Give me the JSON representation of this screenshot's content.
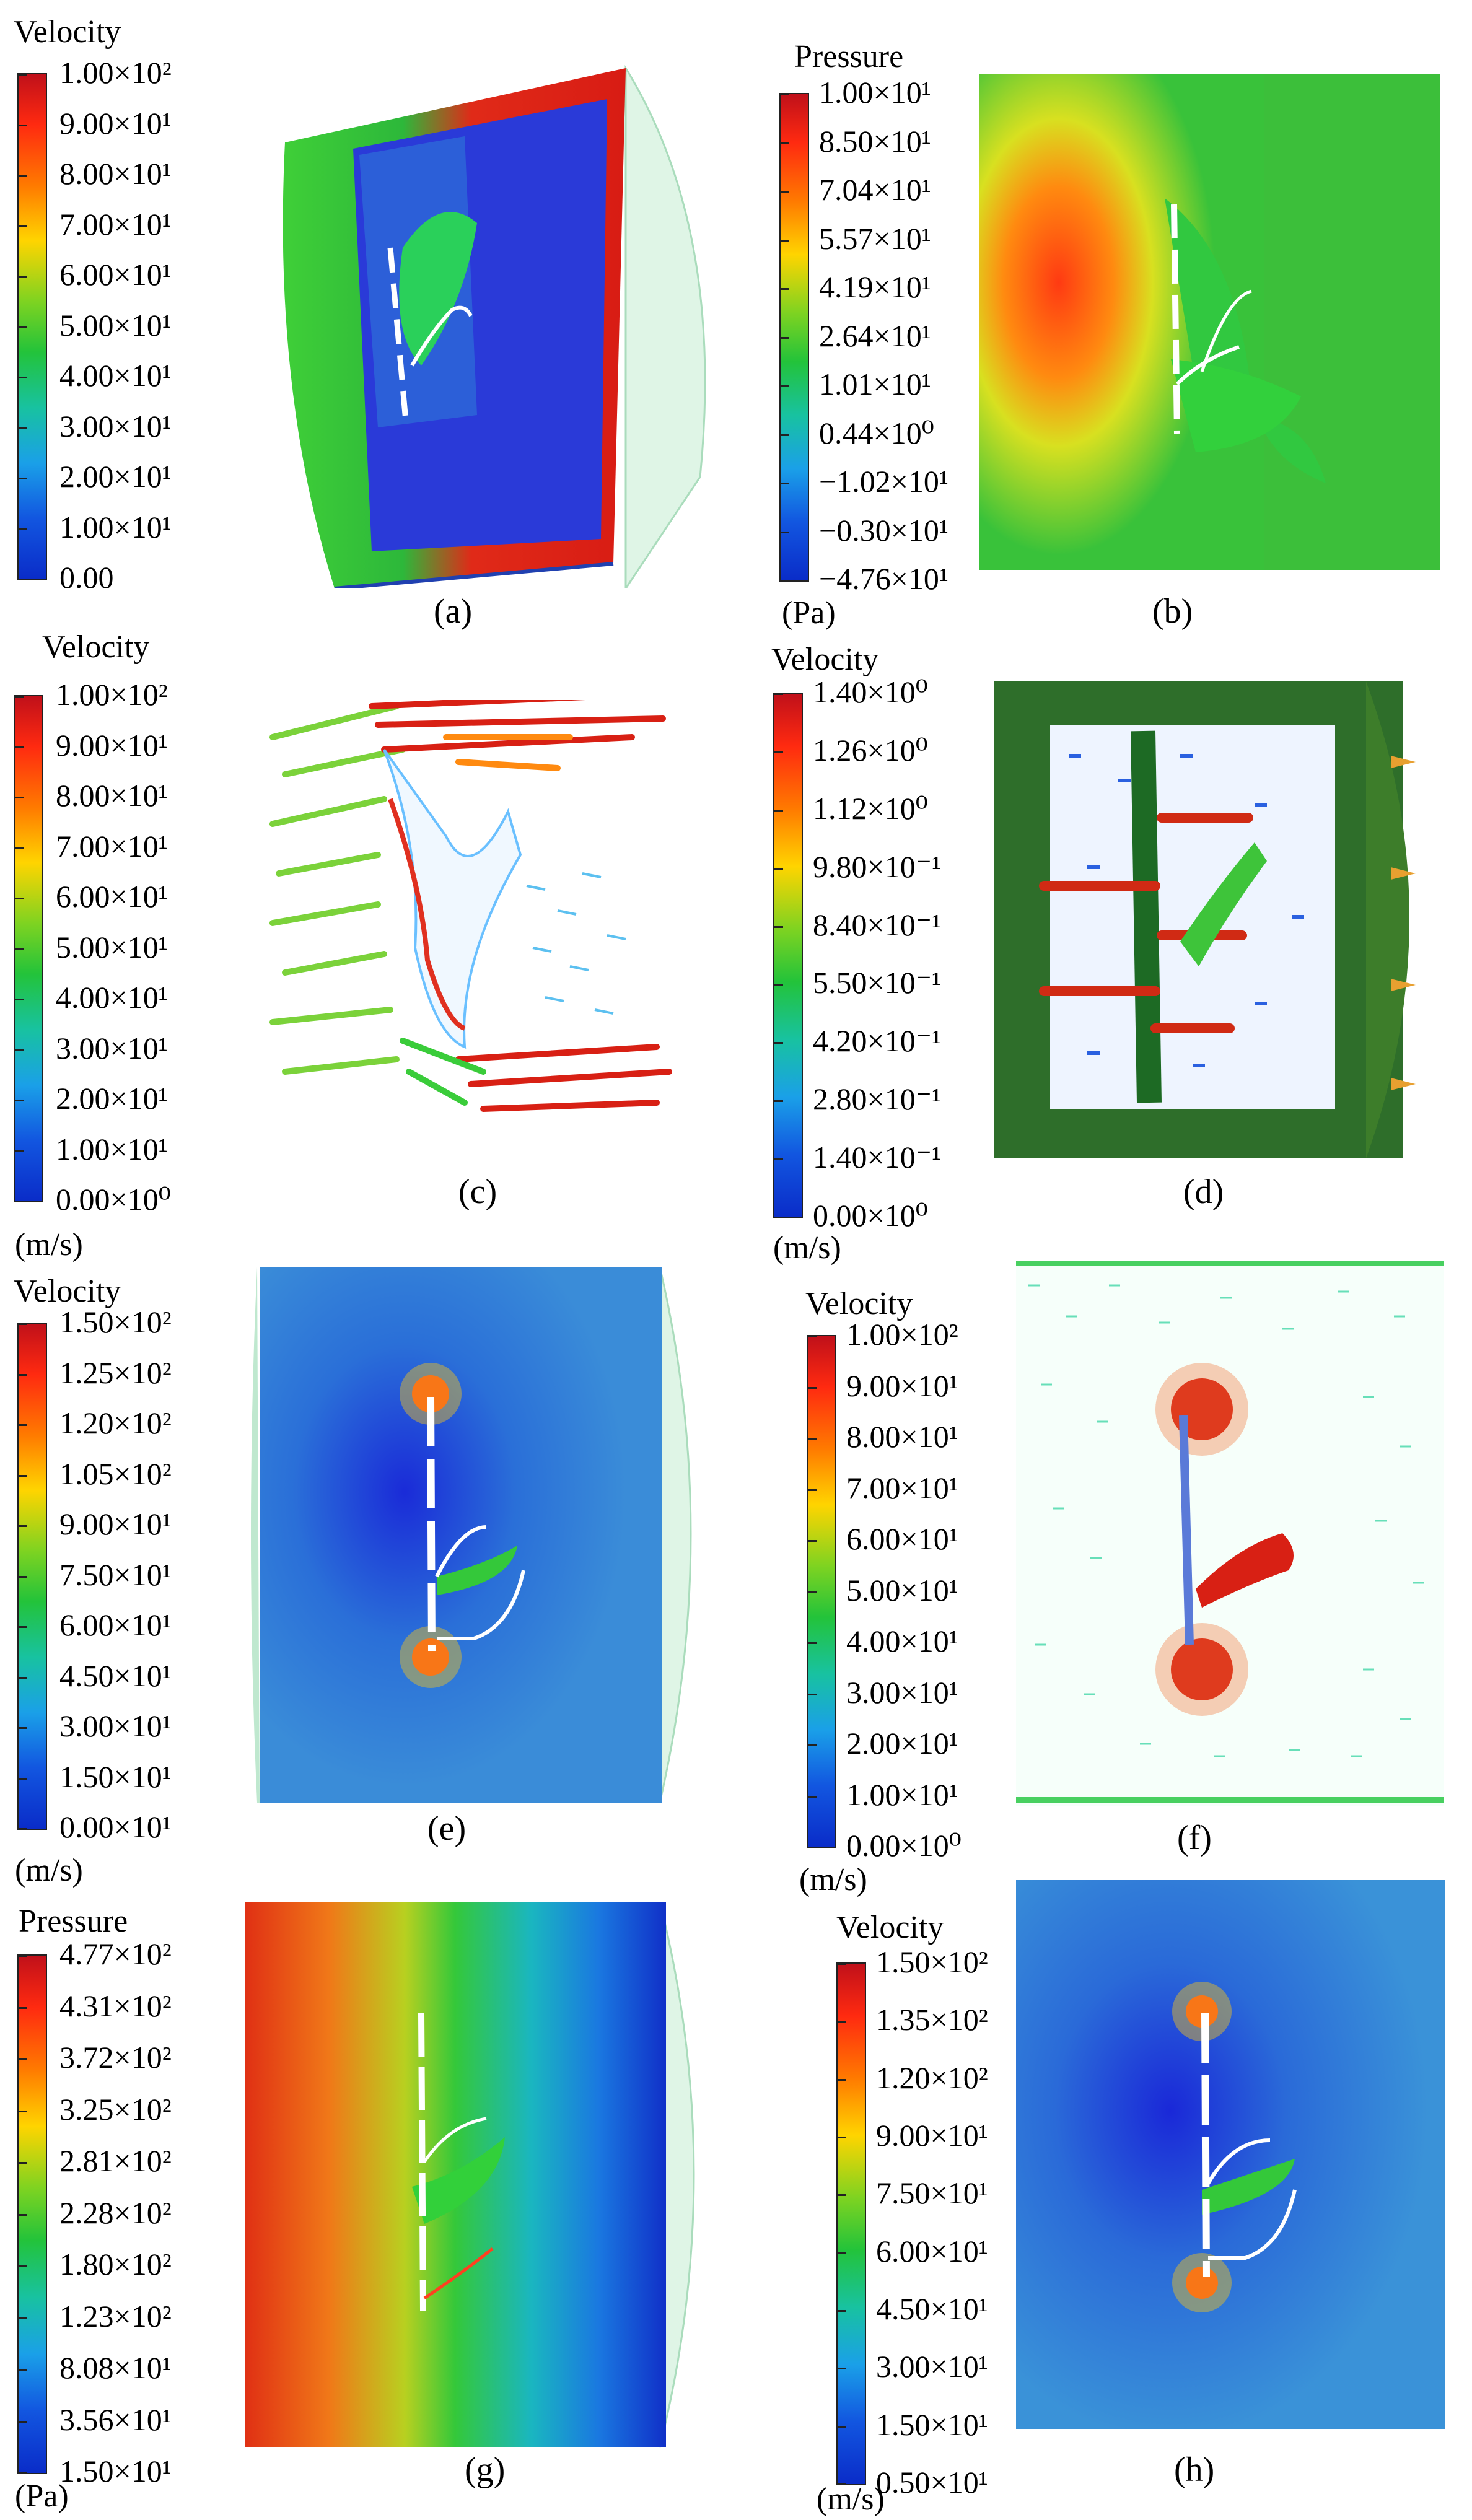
{
  "panels": [
    {
      "id": "a",
      "title": "Velocity",
      "unit": "",
      "caption": "(a)",
      "ticks": [
        "1.00×10²",
        "9.00×10¹",
        "8.00×10¹",
        "7.00×10¹",
        "6.00×10¹",
        "5.00×10¹",
        "4.00×10¹",
        "3.00×10¹",
        "2.00×10¹",
        "1.00×10¹",
        "0.00"
      ]
    },
    {
      "id": "b",
      "title": "Pressure",
      "unit": "(Pa)",
      "caption": "(b)",
      "ticks": [
        "1.00×10¹",
        "8.50×10¹",
        "7.04×10¹",
        "5.57×10¹",
        "4.19×10¹",
        "2.64×10¹",
        "1.01×10¹",
        "0.44×10⁰",
        "−1.02×10¹",
        "−0.30×10¹",
        "−4.76×10¹"
      ]
    },
    {
      "id": "c",
      "title": "Velocity",
      "unit": "(m/s)",
      "caption": "(c)",
      "ticks": [
        "1.00×10²",
        "9.00×10¹",
        "8.00×10¹",
        "7.00×10¹",
        "6.00×10¹",
        "5.00×10¹",
        "4.00×10¹",
        "3.00×10¹",
        "2.00×10¹",
        "1.00×10¹",
        "0.00×10⁰"
      ]
    },
    {
      "id": "d",
      "title": "Velocity",
      "unit": "(m/s)",
      "caption": "(d)",
      "ticks": [
        "1.40×10⁰",
        "1.26×10⁰",
        "1.12×10⁰",
        "9.80×10⁻¹",
        "8.40×10⁻¹",
        "5.50×10⁻¹",
        "4.20×10⁻¹",
        "2.80×10⁻¹",
        "1.40×10⁻¹",
        "0.00×10⁰"
      ]
    },
    {
      "id": "e",
      "title": "Velocity",
      "unit": "(m/s)",
      "caption": "(e)",
      "ticks": [
        "1.50×10²",
        "1.25×10²",
        "1.20×10²",
        "1.05×10²",
        "9.00×10¹",
        "7.50×10¹",
        "6.00×10¹",
        "4.50×10¹",
        "3.00×10¹",
        "1.50×10¹",
        "0.00×10¹"
      ]
    },
    {
      "id": "f",
      "title": "Velocity",
      "unit": "(m/s)",
      "caption": "(f)",
      "ticks": [
        "1.00×10²",
        "9.00×10¹",
        "8.00×10¹",
        "7.00×10¹",
        "6.00×10¹",
        "5.00×10¹",
        "4.00×10¹",
        "3.00×10¹",
        "2.00×10¹",
        "1.00×10¹",
        "0.00×10⁰"
      ]
    },
    {
      "id": "g",
      "title": "Pressure",
      "unit": "(Pa)",
      "caption": "(g)",
      "ticks": [
        "4.77×10²",
        "4.31×10²",
        "3.72×10²",
        "3.25×10²",
        "2.81×10²",
        "2.28×10²",
        "1.80×10²",
        "1.23×10²",
        "8.08×10¹",
        "3.56×10¹",
        "1.50×10¹"
      ]
    },
    {
      "id": "h",
      "title": "Velocity",
      "unit": "(m/s)",
      "caption": "(h)",
      "ticks": [
        "1.50×10²",
        "1.35×10²",
        "1.20×10²",
        "9.00×10¹",
        "7.50×10¹",
        "6.00×10¹",
        "4.50×10¹",
        "3.00×10¹",
        "1.50×10¹",
        "0.50×10¹"
      ]
    }
  ],
  "colors": {
    "hot": "#e01616",
    "mid": "#2dc23a",
    "cold": "#1040d8"
  }
}
